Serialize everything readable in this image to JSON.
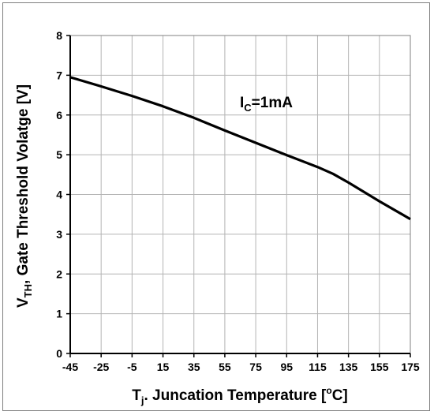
{
  "chart_data": {
    "type": "line",
    "title": "",
    "xlabel": {
      "main": "T",
      "sub": "j",
      "rest": ". Juncation Temperature [",
      "unit_sup": "o",
      "unit_tail": "C]"
    },
    "ylabel": {
      "main": "V",
      "sub": "TH",
      "rest": ", Gate Threshold Volatge [V]"
    },
    "annotation": {
      "main": "I",
      "sub": "C",
      "rest": "=1mA"
    },
    "x_ticks": [
      -45,
      -25,
      -5,
      15,
      35,
      55,
      75,
      95,
      115,
      135,
      155,
      175
    ],
    "y_ticks": [
      0,
      1,
      2,
      3,
      4,
      5,
      6,
      7,
      8
    ],
    "xlim": [
      -45,
      175
    ],
    "ylim": [
      0,
      8
    ],
    "grid": true,
    "series": [
      {
        "color": "#000000",
        "x": [
          -45,
          -25,
          -5,
          15,
          35,
          55,
          75,
          95,
          115,
          125,
          135,
          155,
          175
        ],
        "y": [
          6.95,
          6.72,
          6.48,
          6.22,
          5.93,
          5.61,
          5.3,
          4.99,
          4.69,
          4.52,
          4.3,
          3.83,
          3.38
        ]
      }
    ]
  }
}
